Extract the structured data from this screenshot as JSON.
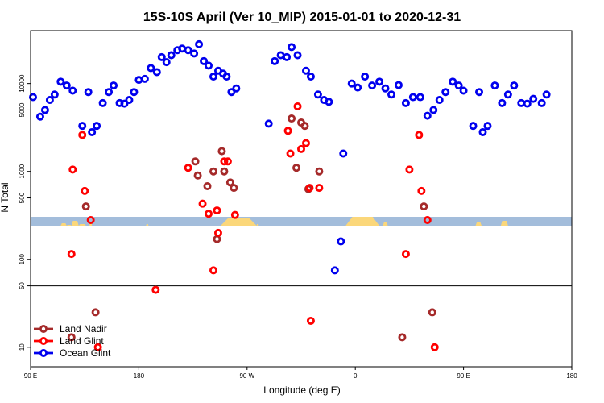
{
  "chart_data": {
    "type": "scatter",
    "title": "15S-10S April (Ver 10_MIP)   2015-01-01 to 2020-12-31",
    "xlabel": "Longitude (deg E)",
    "ylabel": "N Total",
    "x_scale": "longitude, 90E to 180 (wrapping 450 degrees)",
    "y_scale": "log",
    "xlim": [
      90,
      540
    ],
    "ylim": [
      6,
      40000
    ],
    "x_ticks": [
      {
        "value": 90,
        "label": "90 E"
      },
      {
        "value": 180,
        "label": "180"
      },
      {
        "value": 270,
        "label": "90 W"
      },
      {
        "value": 360,
        "label": "0"
      },
      {
        "value": 450,
        "label": "90 E"
      },
      {
        "value": 540,
        "label": "180"
      }
    ],
    "y_ticks": [
      {
        "value": 10,
        "label": "10"
      },
      {
        "value": 50,
        "label": "50"
      },
      {
        "value": 100,
        "label": "100"
      },
      {
        "value": 500,
        "label": "500"
      },
      {
        "value": 1000,
        "label": "1000"
      },
      {
        "value": 5000,
        "label": "5000"
      },
      {
        "value": 10000,
        "label": "10000"
      }
    ],
    "reference_line_y": 50,
    "legend_position": "bottom-left",
    "series": [
      {
        "name": "Land Nadir",
        "color": "#a52a2a",
        "points": [
          [
            124,
            13
          ],
          [
            136,
            400
          ],
          [
            144,
            25
          ],
          [
            227,
            1300
          ],
          [
            229,
            900
          ],
          [
            237,
            680
          ],
          [
            242,
            1000
          ],
          [
            245,
            170
          ],
          [
            249,
            1700
          ],
          [
            251,
            1000
          ],
          [
            256,
            750
          ],
          [
            259,
            650
          ],
          [
            307,
            4000
          ],
          [
            311,
            1100
          ],
          [
            315,
            3600
          ],
          [
            318,
            3300
          ],
          [
            321,
            630
          ],
          [
            330,
            1000
          ],
          [
            399,
            13
          ],
          [
            417,
            400
          ],
          [
            424,
            25
          ]
        ]
      },
      {
        "name": "Land Glint",
        "color": "#ff0000",
        "points": [
          [
            124,
            115
          ],
          [
            125,
            1050
          ],
          [
            133,
            2600
          ],
          [
            135,
            600
          ],
          [
            140,
            280
          ],
          [
            146,
            10
          ],
          [
            194,
            45
          ],
          [
            221,
            1100
          ],
          [
            233,
            430
          ],
          [
            238,
            330
          ],
          [
            242,
            75
          ],
          [
            245,
            360
          ],
          [
            246,
            200
          ],
          [
            251,
            1300
          ],
          [
            254,
            1300
          ],
          [
            260,
            320
          ],
          [
            304,
            2900
          ],
          [
            306,
            1600
          ],
          [
            312,
            5500
          ],
          [
            315,
            1800
          ],
          [
            319,
            2100
          ],
          [
            322,
            650
          ],
          [
            323,
            20
          ],
          [
            330,
            650
          ],
          [
            402,
            115
          ],
          [
            405,
            1050
          ],
          [
            413,
            2600
          ],
          [
            415,
            600
          ],
          [
            420,
            280
          ],
          [
            426,
            10
          ]
        ]
      },
      {
        "name": "Ocean Glint",
        "color": "#0000ee",
        "points": [
          [
            92,
            7000
          ],
          [
            98,
            4200
          ],
          [
            102,
            5000
          ],
          [
            106,
            6500
          ],
          [
            110,
            7500
          ],
          [
            115,
            10500
          ],
          [
            120,
            9500
          ],
          [
            125,
            8300
          ],
          [
            133,
            3300
          ],
          [
            138,
            8000
          ],
          [
            141,
            2800
          ],
          [
            145,
            3300
          ],
          [
            150,
            6000
          ],
          [
            155,
            8000
          ],
          [
            159,
            9500
          ],
          [
            164,
            6000
          ],
          [
            168,
            5900
          ],
          [
            172,
            6500
          ],
          [
            176,
            8000
          ],
          [
            180,
            11000
          ],
          [
            185,
            11300
          ],
          [
            190,
            15000
          ],
          [
            195,
            13500
          ],
          [
            199,
            20000
          ],
          [
            203,
            17500
          ],
          [
            207,
            21000
          ],
          [
            212,
            24000
          ],
          [
            216,
            25000
          ],
          [
            221,
            24000
          ],
          [
            226,
            22000
          ],
          [
            230,
            28000
          ],
          [
            234,
            18000
          ],
          [
            238,
            16000
          ],
          [
            242,
            12000
          ],
          [
            246,
            14000
          ],
          [
            250,
            13000
          ],
          [
            253,
            12000
          ],
          [
            257,
            8000
          ],
          [
            261,
            8800
          ],
          [
            288,
            3500
          ],
          [
            293,
            18000
          ],
          [
            298,
            21000
          ],
          [
            303,
            20000
          ],
          [
            307,
            26000
          ],
          [
            312,
            21000
          ],
          [
            319,
            14000
          ],
          [
            323,
            12000
          ],
          [
            329,
            7500
          ],
          [
            334,
            6500
          ],
          [
            338,
            6200
          ],
          [
            343,
            75
          ],
          [
            348,
            160
          ],
          [
            350,
            1600
          ],
          [
            357,
            10000
          ],
          [
            362,
            9000
          ],
          [
            368,
            12000
          ],
          [
            374,
            9500
          ],
          [
            380,
            10500
          ],
          [
            385,
            8800
          ],
          [
            390,
            7500
          ],
          [
            396,
            9600
          ],
          [
            402,
            6000
          ],
          [
            408,
            7000
          ],
          [
            414,
            7000
          ],
          [
            420,
            4300
          ],
          [
            425,
            5000
          ],
          [
            430,
            6500
          ],
          [
            435,
            8000
          ],
          [
            441,
            10500
          ],
          [
            446,
            9500
          ],
          [
            450,
            8300
          ],
          [
            458,
            3300
          ],
          [
            463,
            8000
          ],
          [
            466,
            2800
          ],
          [
            470,
            3300
          ],
          [
            476,
            9500
          ],
          [
            482,
            6000
          ],
          [
            487,
            7500
          ],
          [
            492,
            9500
          ],
          [
            498,
            6000
          ],
          [
            503,
            5900
          ],
          [
            508,
            6700
          ],
          [
            515,
            6000
          ],
          [
            519,
            7500
          ]
        ]
      }
    ]
  }
}
